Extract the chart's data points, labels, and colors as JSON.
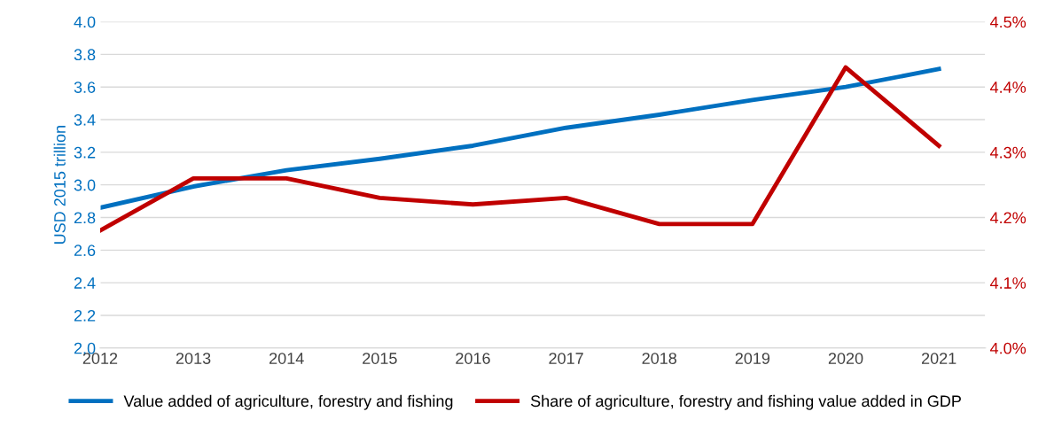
{
  "chart_data": {
    "type": "line",
    "ylabel": "USD 2015 trillion",
    "x": [
      2012,
      2013,
      2014,
      2015,
      2016,
      2017,
      2018,
      2019,
      2020,
      2021
    ],
    "xlim": [
      2012,
      2021.5
    ],
    "xticks": [
      2012,
      2013,
      2014,
      2015,
      2016,
      2017,
      2018,
      2019,
      2020,
      2021
    ],
    "ylim": [
      2.0,
      4.0
    ],
    "yticks": [
      {
        "value": 2.0,
        "label": "2.0"
      },
      {
        "value": 2.2,
        "label": "2.2"
      },
      {
        "value": 2.4,
        "label": "2.4"
      },
      {
        "value": 2.6,
        "label": "2.6"
      },
      {
        "value": 2.8,
        "label": "2.8"
      },
      {
        "value": 3.0,
        "label": "3.0"
      },
      {
        "value": 3.2,
        "label": "3.2"
      },
      {
        "value": 3.4,
        "label": "3.4"
      },
      {
        "value": 3.6,
        "label": "3.6"
      },
      {
        "value": 3.8,
        "label": "3.8"
      },
      {
        "value": 4.0,
        "label": "4.0"
      }
    ],
    "y2lim": [
      4.0,
      4.5
    ],
    "y2ticks": [
      {
        "value": 4.0,
        "label": "4.0%"
      },
      {
        "value": 4.1,
        "label": "4.1%"
      },
      {
        "value": 4.2,
        "label": "4.2%"
      },
      {
        "value": 4.3,
        "label": "4.3%"
      },
      {
        "value": 4.4,
        "label": "4.4%"
      },
      {
        "value": 4.5,
        "label": "4.5%"
      }
    ],
    "grid": "y",
    "legend": "bottom",
    "marker": "none",
    "line_style": "solid",
    "series": [
      {
        "name": "Value added of agriculture, forestry and fishing",
        "color": "#0070c0",
        "values": [
          2.86,
          2.99,
          3.09,
          3.16,
          3.24,
          3.35,
          3.43,
          3.52,
          3.6,
          3.71
        ]
      },
      {
        "name": "Share of agriculture, forestry and fishing value added in GDP",
        "color": "#c00000",
        "axis": "y2",
        "values": [
          4.18,
          4.26,
          4.26,
          4.23,
          4.22,
          4.23,
          4.19,
          4.19,
          4.43,
          4.31
        ]
      }
    ]
  }
}
